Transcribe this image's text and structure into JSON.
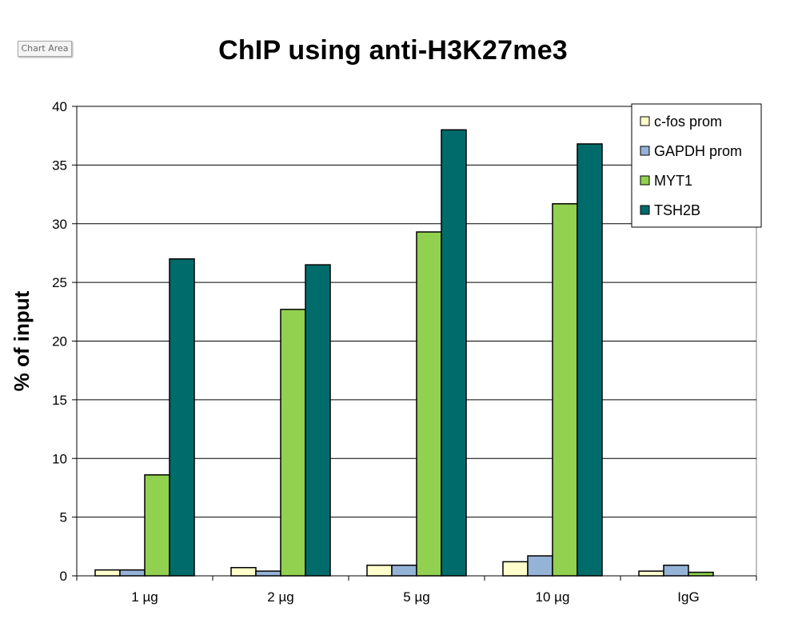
{
  "tooltip": "Chart Area",
  "chart_data": {
    "type": "bar",
    "title": "ChIP using anti-H3K27me3",
    "xlabel": "",
    "ylabel": "% of input",
    "ylim": [
      0,
      40
    ],
    "yticks": [
      0,
      5,
      10,
      15,
      20,
      25,
      30,
      35,
      40
    ],
    "grid": true,
    "legend_position": "top-right",
    "categories": [
      "1 µg",
      "2 µg",
      "5 µg",
      "10 µg",
      "IgG"
    ],
    "series": [
      {
        "name": "c-fos prom",
        "color": "#ffffcc",
        "values": [
          0.5,
          0.7,
          0.9,
          1.2,
          0.4
        ]
      },
      {
        "name": "GAPDH prom",
        "color": "#95b3d7",
        "values": [
          0.5,
          0.4,
          0.9,
          1.7,
          0.9
        ]
      },
      {
        "name": "MYT1",
        "color": "#92d050",
        "values": [
          8.6,
          22.7,
          29.3,
          31.7,
          0.3
        ]
      },
      {
        "name": "TSH2B",
        "color": "#006b6b",
        "values": [
          27.0,
          26.5,
          38.0,
          36.8,
          0.0
        ]
      }
    ]
  }
}
